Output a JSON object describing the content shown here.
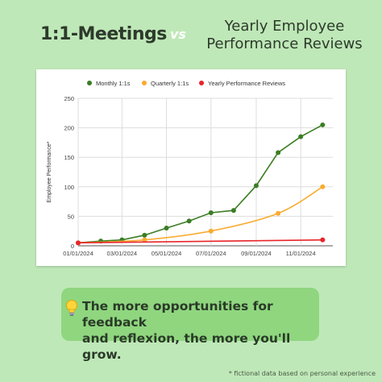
{
  "header": {
    "title_left": "1:1-Meetings",
    "vs": "vs",
    "title_right_line1": "Yearly Employee",
    "title_right_line2": "Performance Reviews"
  },
  "callout": {
    "icon": "lightbulb-icon",
    "line1": "The more opportunities for feedback",
    "line2": "and reflexion, the more you'll grow."
  },
  "footnote": "* fictional data based on personal experience",
  "chart_data": {
    "type": "line",
    "title": "",
    "xlabel": "",
    "ylabel": "Employee Performance*",
    "ylim": [
      0,
      250
    ],
    "yticks": [
      "0",
      "50",
      "100",
      "150",
      "200",
      "250"
    ],
    "xticks": [
      "01/01/2024",
      "03/01/2024",
      "05/01/2024",
      "07/01/2024",
      "09/01/2024",
      "11/01/2024"
    ],
    "xlim": [
      "2024-01-01",
      "2024-12-15"
    ],
    "grid": true,
    "legend_position": "top",
    "series": [
      {
        "name": "Monthly 1:1s",
        "color": "#3b7d23",
        "smooth": false,
        "x": [
          "2024-01-01",
          "2024-02-01",
          "2024-03-01",
          "2024-04-01",
          "2024-05-01",
          "2024-06-01",
          "2024-07-01",
          "2024-08-01",
          "2024-09-01",
          "2024-10-01",
          "2024-11-01",
          "2024-12-01"
        ],
        "values": [
          5,
          8,
          10,
          18,
          30,
          42,
          56,
          60,
          102,
          158,
          185,
          205
        ]
      },
      {
        "name": "Quarterly 1:1s",
        "color": "#f9ab2f",
        "smooth": true,
        "x": [
          "2024-01-01",
          "2024-04-01",
          "2024-07-01",
          "2024-10-01",
          "2024-12-01"
        ],
        "values": [
          5,
          10,
          25,
          55,
          100
        ]
      },
      {
        "name": "Yearly Performance Reviews",
        "color": "#e8242a",
        "smooth": false,
        "x": [
          "2024-01-01",
          "2024-12-01"
        ],
        "values": [
          5,
          10
        ]
      }
    ]
  }
}
